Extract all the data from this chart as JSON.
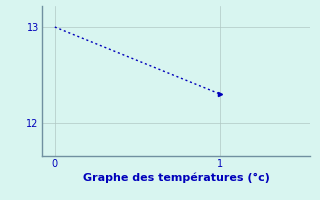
{
  "x": [
    0,
    1
  ],
  "y": [
    13,
    12.3
  ],
  "line_color": "#0000bb",
  "marker": ">",
  "marker_size": 3,
  "background_color": "#d8f5f0",
  "xlabel": "Graphe des températures (°c)",
  "xlabel_color": "#0000bb",
  "xlabel_fontsize": 8,
  "xlim": [
    -0.08,
    1.55
  ],
  "ylim": [
    11.65,
    13.22
  ],
  "yticks": [
    12,
    13
  ],
  "xticks": [
    0,
    1
  ],
  "grid_color": "#b0c8c4",
  "tick_color": "#0000bb",
  "line_width": 1.0,
  "dot_dash": [
    1.5,
    2.0
  ]
}
